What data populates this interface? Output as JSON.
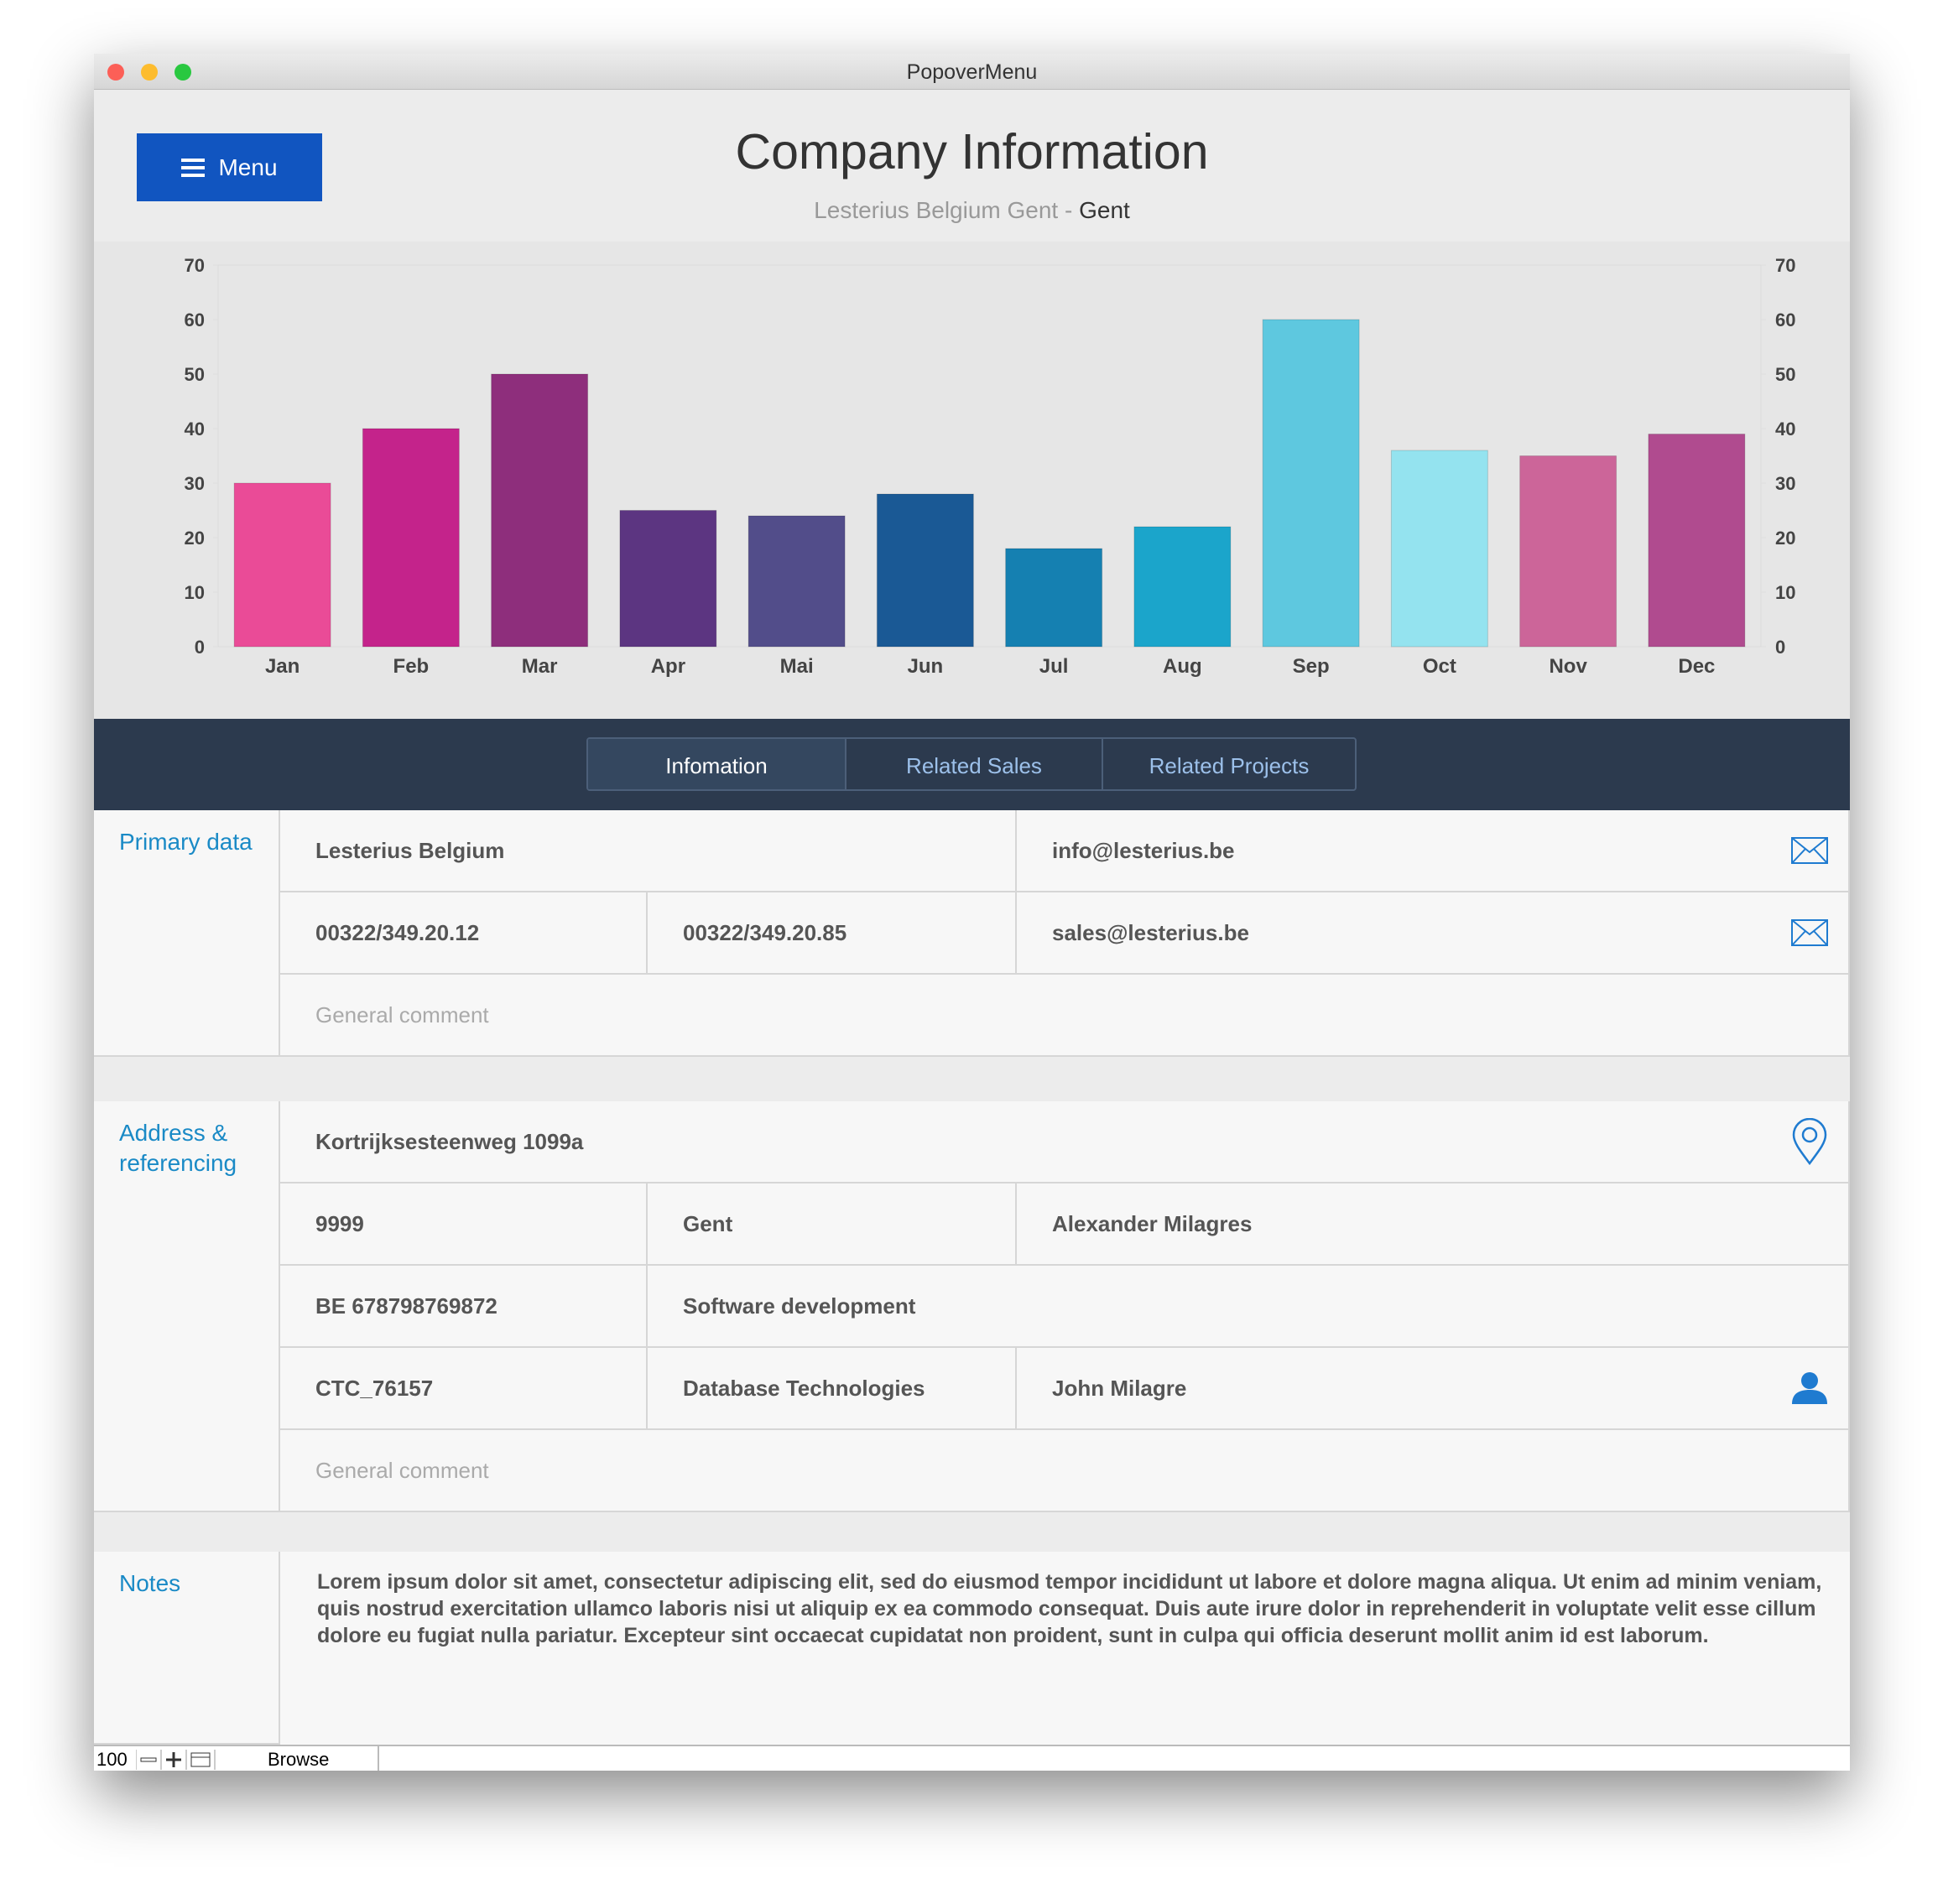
{
  "window": {
    "title": "PopoverMenu"
  },
  "header": {
    "menu_button": "Menu",
    "title": "Company Information",
    "subtitle_company": "Lesterius Belgium Gent",
    "subtitle_separator": "-",
    "subtitle_city": "Gent"
  },
  "chart_data": {
    "type": "bar",
    "categories": [
      "Jan",
      "Feb",
      "Mar",
      "Apr",
      "Mai",
      "Jun",
      "Jul",
      "Aug",
      "Sep",
      "Oct",
      "Nov",
      "Dec"
    ],
    "values": [
      30,
      40,
      50,
      25,
      24,
      28,
      18,
      22,
      60,
      36,
      35,
      39
    ],
    "colors": [
      "#ea4b97",
      "#c4238b",
      "#8e2e7c",
      "#5c3581",
      "#524d8a",
      "#1a5995",
      "#1580b1",
      "#1ba5cb",
      "#5ec8df",
      "#94e3ef",
      "#cc6599",
      "#b04b8f"
    ],
    "ylim": [
      0,
      70
    ],
    "yticks": [
      0,
      10,
      20,
      30,
      40,
      50,
      60,
      70
    ],
    "y2lim": [
      0,
      70
    ],
    "y2ticks": [
      0,
      10,
      20,
      30,
      40,
      50,
      60,
      70
    ]
  },
  "tabs": [
    "Infomation",
    "Related Sales",
    "Related Projects"
  ],
  "sections": [
    {
      "label": "Primary data",
      "rows": [
        [
          "Lesterius Belgium",
          "info@lesterius.be"
        ],
        [
          "00322/349.20.12",
          "00322/349.20.85",
          "sales@lesterius.be"
        ],
        [
          "General comment"
        ]
      ]
    },
    {
      "label": "Address & referencing",
      "rows": [
        [
          "Kortrijksesteenweg 1099a"
        ],
        [
          "9999",
          "Gent",
          "Alexander Milagres"
        ],
        [
          "BE 678798769872",
          "Software development"
        ],
        [
          "CTC_76157",
          "Database Technologies",
          "John Milagre"
        ],
        [
          "General comment"
        ]
      ]
    },
    {
      "label": "Notes",
      "rows": [
        [
          "Lorem ipsum dolor sit amet, consectetur adipiscing elit, sed do eiusmod tempor incididunt ut labore et dolore magna aliqua. Ut enim ad minim veniam, quis nostrud exercitation ullamco laboris nisi ut aliquip ex ea commodo consequat. Duis aute irure dolor in reprehenderit in voluptate velit esse cillum dolore eu fugiat nulla pariatur. Excepteur sint occaecat cupidatat non proident, sunt in culpa qui officia deserunt mollit anim id est laborum."
        ]
      ]
    }
  ],
  "status_bar": {
    "zoom": "100",
    "mode": "Browse"
  }
}
